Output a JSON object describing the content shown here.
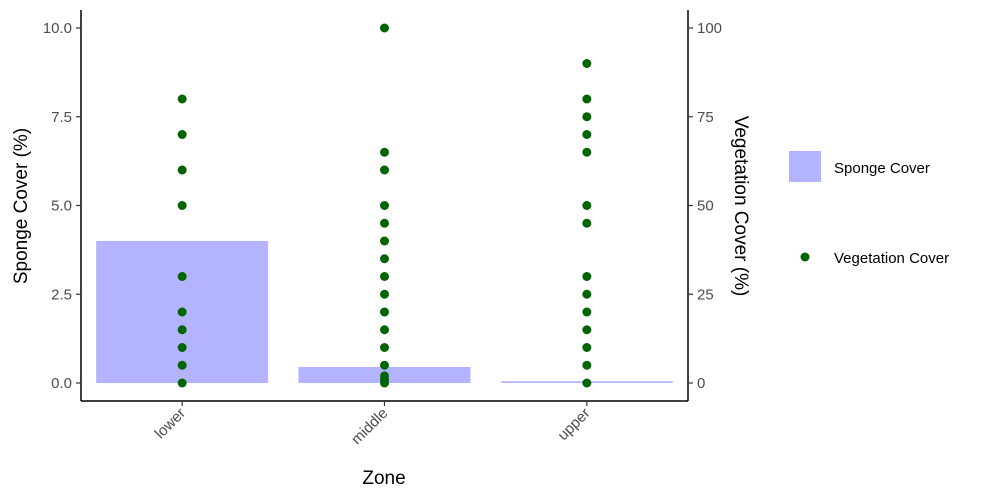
{
  "chart_data": {
    "type": "bar",
    "categories": [
      "lower",
      "middle",
      "upper"
    ],
    "xlabel": "Zone",
    "ylabel": "Sponge Cover (%)",
    "ylabel_right": "Vegetation Cover (%)",
    "ylim": [
      0,
      10
    ],
    "ylim_right": [
      0,
      100
    ],
    "y_ticks": [
      "0.0",
      "2.5",
      "5.0",
      "7.5",
      "10.0"
    ],
    "y_ticks_right": [
      "0",
      "25",
      "50",
      "75",
      "100"
    ],
    "grid": false,
    "legend_position": "right",
    "series": [
      {
        "name": "Sponge Cover",
        "kind": "bar",
        "axis": "left",
        "color": "#b3b3ff",
        "values": [
          4.0,
          0.45,
          0.05
        ]
      },
      {
        "name": "Vegetation Cover",
        "kind": "scatter",
        "axis": "right",
        "color": "#006400",
        "points": {
          "lower": [
            80,
            70,
            60,
            50,
            30,
            20,
            15,
            10,
            5,
            0
          ],
          "middle": [
            100,
            65,
            60,
            50,
            45,
            40,
            35,
            30,
            25,
            20,
            15,
            10,
            5,
            2,
            1,
            0
          ],
          "upper": [
            90,
            80,
            75,
            70,
            65,
            50,
            45,
            30,
            25,
            20,
            15,
            10,
            5,
            0
          ]
        }
      }
    ]
  }
}
